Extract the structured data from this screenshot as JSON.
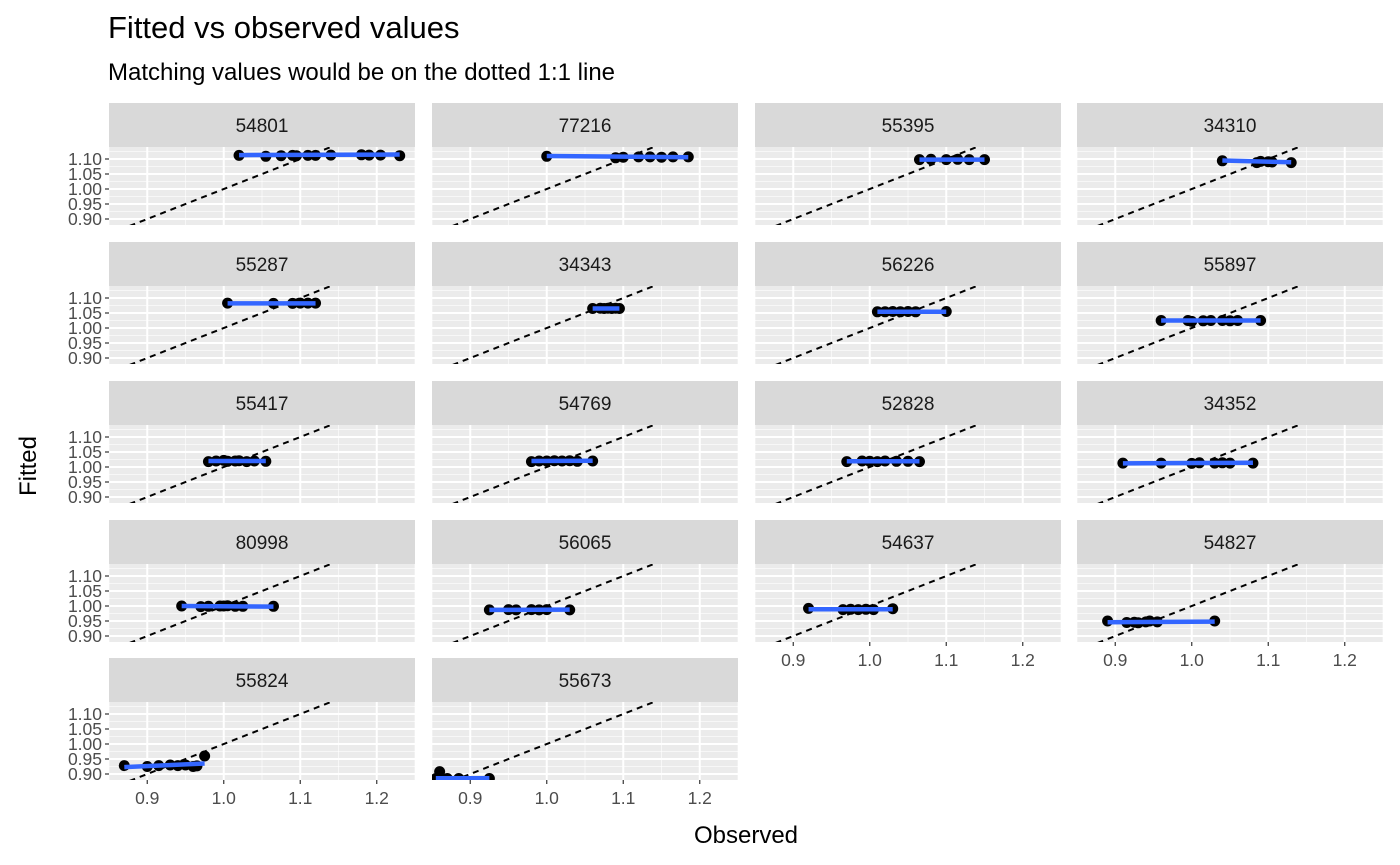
{
  "chart_data": {
    "type": "scatter",
    "title": "Fitted vs observed values",
    "subtitle": "Matching values would be on the dotted 1:1 line",
    "xlabel": "Observed",
    "ylabel": "Fitted",
    "xlim": [
      0.85,
      1.25
    ],
    "ylim": [
      0.88,
      1.14
    ],
    "x_ticks": [
      0.9,
      1.0,
      1.1,
      1.2
    ],
    "x_tick_labels": [
      "0.9",
      "1.0",
      "1.1",
      "1.2"
    ],
    "y_ticks": [
      0.9,
      0.95,
      1.0,
      1.05,
      1.1
    ],
    "y_tick_labels": [
      "0.90",
      "0.95",
      "1.00",
      "1.05",
      "1.10"
    ],
    "reference_line": "1:1 dashed",
    "grid": true,
    "facets": [
      {
        "label": "54801",
        "points": [
          [
            1.02,
            1.112
          ],
          [
            1.055,
            1.109
          ],
          [
            1.075,
            1.111
          ],
          [
            1.09,
            1.112
          ],
          [
            1.095,
            1.111
          ],
          [
            1.11,
            1.112
          ],
          [
            1.12,
            1.112
          ],
          [
            1.14,
            1.113
          ],
          [
            1.18,
            1.114
          ],
          [
            1.19,
            1.113
          ],
          [
            1.205,
            1.113
          ],
          [
            1.23,
            1.111
          ]
        ],
        "fit": [
          [
            1.02,
            1.113
          ],
          [
            1.23,
            1.115
          ]
        ]
      },
      {
        "label": "77216",
        "points": [
          [
            1.0,
            1.109
          ],
          [
            1.09,
            1.104
          ],
          [
            1.1,
            1.106
          ],
          [
            1.12,
            1.107
          ],
          [
            1.135,
            1.107
          ],
          [
            1.15,
            1.106
          ],
          [
            1.165,
            1.107
          ],
          [
            1.185,
            1.107
          ]
        ],
        "fit": [
          [
            1.0,
            1.11
          ],
          [
            1.185,
            1.106
          ]
        ]
      },
      {
        "label": "55395",
        "points": [
          [
            1.065,
            1.098
          ],
          [
            1.08,
            1.099
          ],
          [
            1.1,
            1.098
          ],
          [
            1.115,
            1.099
          ],
          [
            1.13,
            1.098
          ],
          [
            1.15,
            1.098
          ]
        ],
        "fit": [
          [
            1.065,
            1.098
          ],
          [
            1.15,
            1.098
          ]
        ]
      },
      {
        "label": "34310",
        "points": [
          [
            1.04,
            1.094
          ],
          [
            1.085,
            1.088
          ],
          [
            1.09,
            1.092
          ],
          [
            1.1,
            1.091
          ],
          [
            1.105,
            1.09
          ],
          [
            1.13,
            1.088
          ]
        ],
        "fit": [
          [
            1.04,
            1.095
          ],
          [
            1.13,
            1.089
          ]
        ]
      },
      {
        "label": "55287",
        "points": [
          [
            1.005,
            1.083
          ],
          [
            1.065,
            1.082
          ],
          [
            1.09,
            1.082
          ],
          [
            1.1,
            1.083
          ],
          [
            1.11,
            1.083
          ],
          [
            1.12,
            1.083
          ]
        ],
        "fit": [
          [
            1.005,
            1.082
          ],
          [
            1.12,
            1.082
          ]
        ]
      },
      {
        "label": "34343",
        "points": [
          [
            1.06,
            1.065
          ],
          [
            1.07,
            1.066
          ],
          [
            1.075,
            1.065
          ],
          [
            1.08,
            1.066
          ],
          [
            1.085,
            1.065
          ],
          [
            1.09,
            1.066
          ],
          [
            1.095,
            1.065
          ]
        ],
        "fit": [
          [
            1.06,
            1.065
          ],
          [
            1.095,
            1.065
          ]
        ]
      },
      {
        "label": "56226",
        "points": [
          [
            1.01,
            1.054
          ],
          [
            1.02,
            1.054
          ],
          [
            1.03,
            1.055
          ],
          [
            1.04,
            1.054
          ],
          [
            1.05,
            1.055
          ],
          [
            1.06,
            1.054
          ],
          [
            1.1,
            1.055
          ]
        ],
        "fit": [
          [
            1.01,
            1.054
          ],
          [
            1.1,
            1.054
          ]
        ]
      },
      {
        "label": "55897",
        "points": [
          [
            0.96,
            1.025
          ],
          [
            0.995,
            1.025
          ],
          [
            1.0,
            1.022
          ],
          [
            1.015,
            1.024
          ],
          [
            1.025,
            1.025
          ],
          [
            1.04,
            1.025
          ],
          [
            1.05,
            1.024
          ],
          [
            1.06,
            1.025
          ],
          [
            1.09,
            1.025
          ]
        ],
        "fit": [
          [
            0.96,
            1.025
          ],
          [
            1.09,
            1.025
          ]
        ]
      },
      {
        "label": "55417",
        "points": [
          [
            0.98,
            1.018
          ],
          [
            0.99,
            1.02
          ],
          [
            1.0,
            1.022
          ],
          [
            1.005,
            1.019
          ],
          [
            1.015,
            1.02
          ],
          [
            1.02,
            1.021
          ],
          [
            1.03,
            1.018
          ],
          [
            1.04,
            1.02
          ],
          [
            1.055,
            1.019
          ]
        ],
        "fit": [
          [
            0.98,
            1.02
          ],
          [
            1.055,
            1.02
          ]
        ]
      },
      {
        "label": "54769",
        "points": [
          [
            0.98,
            1.018
          ],
          [
            0.99,
            1.02
          ],
          [
            1.0,
            1.02
          ],
          [
            1.01,
            1.021
          ],
          [
            1.02,
            1.02
          ],
          [
            1.03,
            1.021
          ],
          [
            1.04,
            1.019
          ],
          [
            1.06,
            1.02
          ]
        ],
        "fit": [
          [
            0.98,
            1.02
          ],
          [
            1.06,
            1.021
          ]
        ]
      },
      {
        "label": "52828",
        "points": [
          [
            0.97,
            1.018
          ],
          [
            0.99,
            1.02
          ],
          [
            1.0,
            1.019
          ],
          [
            1.01,
            1.018
          ],
          [
            1.02,
            1.02
          ],
          [
            1.035,
            1.019
          ],
          [
            1.05,
            1.019
          ],
          [
            1.065,
            1.018
          ]
        ],
        "fit": [
          [
            0.97,
            1.019
          ],
          [
            1.065,
            1.019
          ]
        ]
      },
      {
        "label": "34352",
        "points": [
          [
            0.91,
            1.013
          ],
          [
            0.96,
            1.013
          ],
          [
            1.0,
            1.012
          ],
          [
            1.01,
            1.014
          ],
          [
            1.03,
            1.013
          ],
          [
            1.04,
            1.014
          ],
          [
            1.05,
            1.013
          ],
          [
            1.08,
            1.013
          ]
        ],
        "fit": [
          [
            0.91,
            1.012
          ],
          [
            1.08,
            1.014
          ]
        ]
      },
      {
        "label": "80998",
        "points": [
          [
            0.945,
            1.0
          ],
          [
            0.97,
            0.998
          ],
          [
            0.98,
            0.999
          ],
          [
            0.995,
            1.0
          ],
          [
            1.0,
            1.0
          ],
          [
            1.005,
            1.001
          ],
          [
            1.015,
            0.999
          ],
          [
            1.025,
            0.999
          ],
          [
            1.065,
            0.999
          ]
        ],
        "fit": [
          [
            0.945,
            1.0
          ],
          [
            1.065,
            0.998
          ]
        ]
      },
      {
        "label": "56065",
        "points": [
          [
            0.925,
            0.987
          ],
          [
            0.95,
            0.988
          ],
          [
            0.96,
            0.987
          ],
          [
            0.98,
            0.988
          ],
          [
            0.99,
            0.987
          ],
          [
            1.0,
            0.988
          ],
          [
            1.03,
            0.987
          ]
        ],
        "fit": [
          [
            0.925,
            0.987
          ],
          [
            1.03,
            0.988
          ]
        ]
      },
      {
        "label": "54637",
        "points": [
          [
            0.92,
            0.992
          ],
          [
            0.965,
            0.988
          ],
          [
            0.975,
            0.989
          ],
          [
            0.985,
            0.988
          ],
          [
            0.995,
            0.989
          ],
          [
            1.005,
            0.988
          ],
          [
            1.03,
            0.991
          ]
        ],
        "fit": [
          [
            0.92,
            0.989
          ],
          [
            1.03,
            0.989
          ]
        ]
      },
      {
        "label": "54827",
        "points": [
          [
            0.89,
            0.95
          ],
          [
            0.915,
            0.945
          ],
          [
            0.925,
            0.946
          ],
          [
            0.93,
            0.944
          ],
          [
            0.94,
            0.947
          ],
          [
            0.945,
            0.95
          ],
          [
            0.955,
            0.947
          ],
          [
            1.03,
            0.95
          ]
        ],
        "fit": [
          [
            0.89,
            0.946
          ],
          [
            1.03,
            0.948
          ]
        ]
      },
      {
        "label": "55824",
        "points": [
          [
            0.87,
            0.928
          ],
          [
            0.9,
            0.925
          ],
          [
            0.915,
            0.928
          ],
          [
            0.93,
            0.93
          ],
          [
            0.94,
            0.928
          ],
          [
            0.95,
            0.93
          ],
          [
            0.96,
            0.925
          ],
          [
            0.965,
            0.927
          ],
          [
            0.975,
            0.96
          ]
        ],
        "fit": [
          [
            0.87,
            0.923
          ],
          [
            0.975,
            0.935
          ]
        ]
      },
      {
        "label": "55673",
        "points": [
          [
            0.855,
            0.885
          ],
          [
            0.86,
            0.908
          ],
          [
            0.87,
            0.885
          ],
          [
            0.885,
            0.885
          ],
          [
            0.925,
            0.885
          ]
        ],
        "fit": [
          [
            0.855,
            0.886
          ],
          [
            0.925,
            0.886
          ]
        ]
      }
    ]
  },
  "colors": {
    "panel_bg": "#ebebeb",
    "strip_bg": "#d9d9d9",
    "grid_major": "#ffffff",
    "point": "#000000",
    "fit_line": "#3366ff",
    "ref_line": "#000000"
  }
}
